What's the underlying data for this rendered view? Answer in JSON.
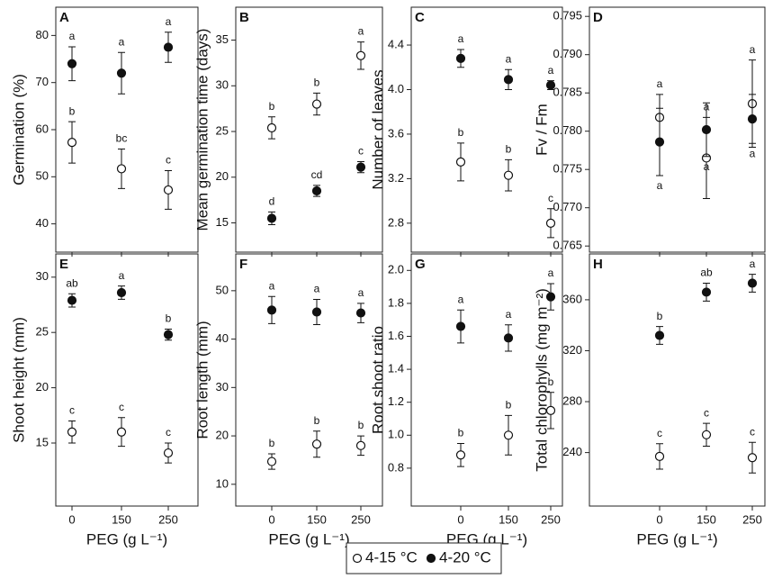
{
  "chart_data": [
    {
      "type": "scatter",
      "panel": "A",
      "ylabel": "Germination (%)",
      "categories": [
        null,
        null,
        null
      ],
      "ylim": [
        34,
        86
      ],
      "yticks": [
        40,
        50,
        60,
        70,
        80
      ],
      "series": [
        {
          "marker": "open",
          "letter_position": "above",
          "values": [
            57.3,
            51.7,
            47.2
          ],
          "errors": [
            4.4,
            4.2,
            4.1
          ],
          "letters": [
            "b",
            "bc",
            "c"
          ]
        },
        {
          "marker": "filled",
          "letter_position": "above",
          "values": [
            74.0,
            72.0,
            77.5
          ],
          "errors": [
            3.6,
            4.4,
            3.2
          ],
          "letters": [
            "a",
            "a",
            "a"
          ]
        }
      ]
    },
    {
      "type": "scatter",
      "panel": "B",
      "ylabel": "Mean germination time (days)",
      "categories": [
        null,
        null,
        null
      ],
      "ylim": [
        11.8,
        38.6
      ],
      "yticks": [
        15,
        20,
        25,
        30,
        35
      ],
      "series": [
        {
          "marker": "open",
          "letter_position": "above",
          "values": [
            25.4,
            28.0,
            33.3
          ],
          "errors": [
            1.2,
            1.2,
            1.5
          ],
          "letters": [
            "b",
            "b",
            "a"
          ]
        },
        {
          "marker": "filled",
          "letter_position": "above",
          "values": [
            15.5,
            18.5,
            21.1
          ],
          "errors": [
            0.7,
            0.6,
            0.6
          ],
          "letters": [
            "d",
            "cd",
            "c"
          ]
        }
      ]
    },
    {
      "type": "scatter",
      "panel": "C",
      "ylabel": "Number of leaves",
      "categories": [
        null,
        null,
        null
      ],
      "ylim": [
        2.54,
        4.74
      ],
      "yticks": [
        2.8,
        3.2,
        3.6,
        {
          "value": 4,
          "label": "4.0"
        },
        4.4
      ],
      "series": [
        {
          "marker": "open",
          "letter_position": "above",
          "values": [
            3.35,
            3.23,
            2.8
          ],
          "errors": [
            0.17,
            0.14,
            0.13
          ],
          "letters": [
            "b",
            "b",
            "c"
          ]
        },
        {
          "marker": "filled",
          "letter_position": "above",
          "values": [
            4.28,
            4.09,
            4.04
          ],
          "errors": [
            0.08,
            0.09,
            0.04
          ],
          "letters": [
            "a",
            "a",
            "a"
          ]
        }
      ]
    },
    {
      "type": "scatter",
      "panel": "D",
      "ylabel": "Fv / Fm",
      "categories": [
        null,
        null,
        null
      ],
      "ylim": [
        0.7642,
        0.7962
      ],
      "yticks": [
        0.765,
        {
          "value": 0.77,
          "label": "0.770"
        },
        0.775,
        {
          "value": 0.78,
          "label": "0.780"
        },
        0.785,
        {
          "value": 0.79,
          "label": "0.790"
        },
        0.795
      ],
      "series": [
        {
          "marker": "open",
          "letter_position": "above",
          "values": [
            0.7818,
            0.7765,
            0.7836
          ],
          "errors": [
            0.003,
            0.0053,
            0.0057
          ],
          "letters": [
            "a",
            "a",
            "a"
          ]
        },
        {
          "marker": "filled",
          "letter_position": "below",
          "values": [
            0.7786,
            0.7802,
            0.7816
          ],
          "errors": [
            0.0044,
            0.0035,
            0.0032
          ],
          "letters": [
            "a",
            "a",
            "a"
          ]
        }
      ]
    },
    {
      "type": "scatter",
      "panel": "E",
      "ylabel": "Shoot height (mm)",
      "xlabel": "PEG (g L⁻¹)",
      "categories": [
        "0",
        "150",
        "250"
      ],
      "ylim": [
        9.3,
        32.1
      ],
      "yticks": [
        15,
        20,
        25,
        30
      ],
      "series": [
        {
          "marker": "open",
          "letter_position": "above",
          "values": [
            16.0,
            16.0,
            14.1
          ],
          "errors": [
            1.0,
            1.3,
            0.9
          ],
          "letters": [
            "c",
            "c",
            "c"
          ]
        },
        {
          "marker": "filled",
          "letter_position": "above",
          "values": [
            27.9,
            28.6,
            24.8
          ],
          "errors": [
            0.6,
            0.6,
            0.5
          ],
          "letters": [
            "ab",
            "a",
            "b"
          ]
        }
      ]
    },
    {
      "type": "scatter",
      "panel": "F",
      "ylabel": "Root length (mm)",
      "xlabel": "PEG (g L⁻¹)",
      "categories": [
        "0",
        "150",
        "250"
      ],
      "ylim": [
        5.5,
        57.6
      ],
      "yticks": [
        10,
        20,
        30,
        40,
        50
      ],
      "series": [
        {
          "marker": "open",
          "letter_position": "above",
          "values": [
            14.7,
            18.3,
            18.0
          ],
          "errors": [
            1.6,
            2.7,
            2.0
          ],
          "letters": [
            "b",
            "b",
            "b"
          ]
        },
        {
          "marker": "filled",
          "letter_position": "above",
          "values": [
            46.0,
            45.6,
            45.4
          ],
          "errors": [
            2.8,
            2.6,
            2.0
          ],
          "letters": [
            "a",
            "a",
            "a"
          ]
        }
      ]
    },
    {
      "type": "scatter",
      "panel": "G",
      "ylabel": "Root shoot ratio",
      "xlabel": "PEG (g L⁻¹)",
      "categories": [
        "0",
        "150",
        "250"
      ],
      "ylim": [
        0.57,
        2.1
      ],
      "yticks": [
        0.8,
        {
          "value": 1,
          "label": "1.0"
        },
        1.2,
        1.4,
        1.6,
        1.8,
        {
          "value": 2,
          "label": "2.0"
        }
      ],
      "series": [
        {
          "marker": "open",
          "letter_position": "above",
          "values": [
            0.88,
            1.0,
            1.15
          ],
          "errors": [
            0.07,
            0.12,
            0.11
          ],
          "letters": [
            "b",
            "b",
            "b"
          ]
        },
        {
          "marker": "filled",
          "letter_position": "above",
          "values": [
            1.66,
            1.59,
            1.84
          ],
          "errors": [
            0.1,
            0.08,
            0.08
          ],
          "letters": [
            "a",
            "a",
            "a"
          ]
        }
      ]
    },
    {
      "type": "scatter",
      "panel": "H",
      "ylabel": "Total chlorophylls (mg m⁻²)",
      "xlabel": "PEG (g L⁻¹)",
      "categories": [
        "0",
        "150",
        "250"
      ],
      "ylim": [
        198,
        396
      ],
      "yticks": [
        240,
        280,
        320,
        360
      ],
      "series": [
        {
          "marker": "open",
          "letter_position": "above",
          "values": [
            237,
            254,
            236
          ],
          "errors": [
            10,
            9,
            12
          ],
          "letters": [
            "c",
            "c",
            "c"
          ]
        },
        {
          "marker": "filled",
          "letter_position": "above",
          "values": [
            332,
            366,
            373
          ],
          "errors": [
            7,
            7,
            7
          ],
          "letters": [
            "b",
            "ab",
            "a"
          ]
        }
      ]
    }
  ],
  "legend": [
    {
      "name": "4-15 °C",
      "marker": "open"
    },
    {
      "name": "4-20 °C",
      "marker": "filled"
    }
  ]
}
